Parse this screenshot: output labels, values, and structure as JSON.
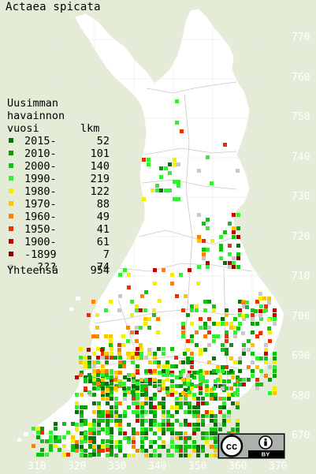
{
  "title": "Actaea spicata",
  "legend": {
    "heading_lines": [
      "Uusimman",
      "havainnon",
      "vuosi"
    ],
    "count_header": "lkm",
    "rows": [
      {
        "label": "2015-",
        "count": "52",
        "color": "#0a6e0a"
      },
      {
        "label": "2010-",
        "count": "101",
        "color": "#0a9a0a"
      },
      {
        "label": "2000-",
        "count": "140",
        "color": "#12c412"
      },
      {
        "label": "1990-",
        "count": "219",
        "color": "#33ee33"
      },
      {
        "label": "1980-",
        "count": "122",
        "color": "#f0f000"
      },
      {
        "label": "1970-",
        "count": "88",
        "color": "#ffc400"
      },
      {
        "label": "1960-",
        "count": "49",
        "color": "#ff8000"
      },
      {
        "label": "1950-",
        "count": "41",
        "color": "#e83000"
      },
      {
        "label": "1900-",
        "count": "61",
        "color": "#c40000"
      },
      {
        "label": "-1899",
        "count": "7",
        "color": "#8a0000"
      },
      {
        "label": "???",
        "count": "74",
        "color": "#c8c8c8"
      }
    ],
    "total_label": "Yhteensä",
    "total_count": "954"
  },
  "axes": {
    "y_ticks": [
      "770",
      "760",
      "750",
      "740",
      "730",
      "720",
      "710",
      "700",
      "690",
      "680",
      "670"
    ],
    "x_ticks": [
      "310",
      "320",
      "330",
      "340",
      "350",
      "360",
      "370"
    ]
  },
  "colors": {
    "background": "#e4ebd6",
    "land": "#ffffff",
    "tick_text": "#ffffff"
  },
  "license_badge": {
    "icons": [
      "cc-icon",
      "attribution-icon"
    ],
    "text": "BY"
  }
}
